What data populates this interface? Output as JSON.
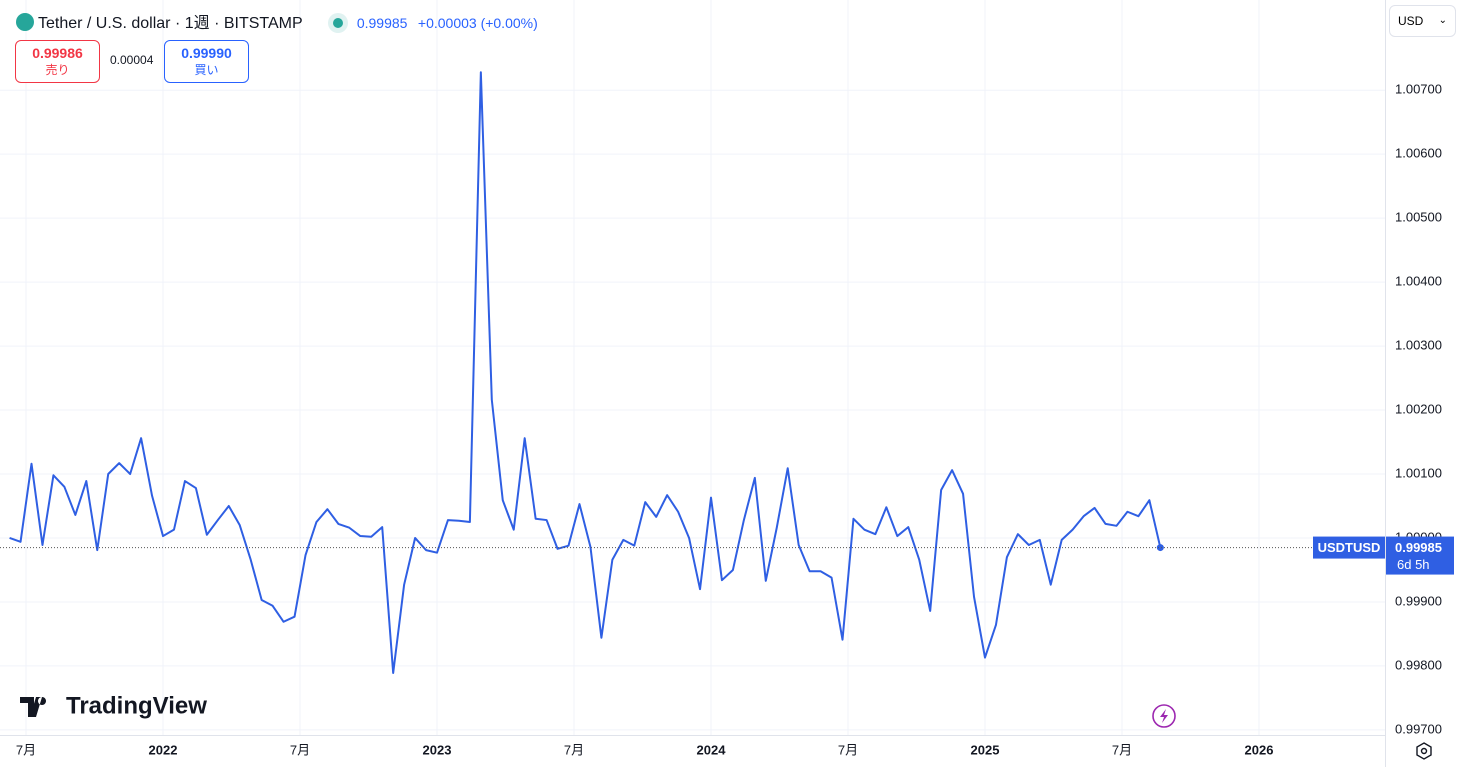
{
  "header": {
    "symbol": "Tether / U.S. dollar · 1週 · BITSTAMP",
    "last": "0.99985",
    "change": "+0.00003 (+0.00%)",
    "sell": {
      "price": "0.99986",
      "label": "売り"
    },
    "spread": "0.00004",
    "buy": {
      "price": "0.99990",
      "label": "買い"
    },
    "currency": "USD"
  },
  "logo": "TradingView",
  "chart_data": {
    "type": "line",
    "x": [
      2021.44,
      2021.48,
      2021.52,
      2021.56,
      2021.6,
      2021.64,
      2021.68,
      2021.72,
      2021.76,
      2021.8,
      2021.84,
      2021.88,
      2021.92,
      2021.96,
      2022.0,
      2022.04,
      2022.08,
      2022.12,
      2022.16,
      2022.2,
      2022.24,
      2022.28,
      2022.32,
      2022.36,
      2022.4,
      2022.44,
      2022.48,
      2022.52,
      2022.56,
      2022.6,
      2022.64,
      2022.68,
      2022.72,
      2022.76,
      2022.8,
      2022.84,
      2022.88,
      2022.92,
      2022.96,
      2023.0,
      2023.04,
      2023.08,
      2023.12,
      2023.16,
      2023.2,
      2023.24,
      2023.28,
      2023.32,
      2023.36,
      2023.4,
      2023.44,
      2023.48,
      2023.52,
      2023.56,
      2023.6,
      2023.64,
      2023.68,
      2023.72,
      2023.76,
      2023.8,
      2023.84,
      2023.88,
      2023.92,
      2023.96,
      2024.0,
      2024.04,
      2024.08,
      2024.12,
      2024.16,
      2024.2,
      2024.24,
      2024.28,
      2024.32,
      2024.36,
      2024.4,
      2024.44,
      2024.48,
      2024.52,
      2024.56,
      2024.6,
      2024.64,
      2024.68,
      2024.72,
      2024.76,
      2024.8,
      2024.84,
      2024.88,
      2024.92,
      2024.96,
      2025.0,
      2025.04,
      2025.08,
      2025.12,
      2025.16,
      2025.2,
      2025.24,
      2025.28,
      2025.32,
      2025.36,
      2025.4,
      2025.44,
      2025.48,
      2025.52,
      2025.56,
      2025.6,
      2025.64
    ],
    "series": [
      {
        "name": "USDTUSD",
        "color": "#2f5fe3",
        "values": [
          1.0,
          0.99994,
          1.00116,
          0.99989,
          1.00098,
          1.0008,
          1.00036,
          1.00089,
          0.99981,
          1.001,
          1.00117,
          1.001,
          1.00156,
          1.00066,
          1.00003,
          1.00013,
          1.00089,
          1.00078,
          1.00005,
          1.00028,
          1.0005,
          1.0002,
          0.99966,
          0.99903,
          0.99894,
          0.99869,
          0.99877,
          0.99973,
          1.00025,
          1.00045,
          1.00022,
          1.00016,
          1.00003,
          1.00002,
          1.00017,
          0.99789,
          0.99927,
          1.0,
          0.99981,
          0.99977,
          1.00028,
          1.00027,
          1.00025,
          1.00728,
          1.00216,
          1.00059,
          1.00013,
          1.00156,
          1.0003,
          1.00028,
          0.99983,
          0.99988,
          1.00053,
          0.99986,
          0.99844,
          0.99966,
          0.99997,
          0.99988,
          1.00056,
          1.00033,
          1.00067,
          1.00041,
          1.0,
          0.9992,
          1.00063,
          0.99934,
          0.9995,
          1.00028,
          1.00094,
          0.99933,
          1.00016,
          1.00109,
          0.99989,
          0.99948,
          0.99948,
          0.99938,
          0.99841,
          1.0003,
          1.00013,
          1.00006,
          1.00048,
          1.00003,
          1.00017,
          0.99966,
          0.99886,
          1.00075,
          1.00106,
          1.00069,
          0.99908,
          0.99813,
          0.99864,
          0.9997,
          1.00006,
          0.99989,
          0.99997,
          0.99927,
          0.99997,
          1.00013,
          1.00034,
          1.00047,
          1.00022,
          1.00019,
          1.00041,
          1.00034,
          1.00059,
          0.99985
        ]
      }
    ],
    "xlim": [
      2021.405,
      2026.46
    ],
    "xticks": [
      {
        "value": 2021.5,
        "label": "7月"
      },
      2022,
      {
        "value": 2022.5,
        "label": "7月"
      },
      2023,
      {
        "value": 2023.5,
        "label": "7月"
      },
      2024,
      {
        "value": 2024.5,
        "label": "7月"
      },
      2025,
      {
        "value": 2025.5,
        "label": "7月"
      },
      2026
    ],
    "ylim": [
      0.99692,
      1.00841
    ],
    "yticks": [
      {
        "value": 0.997,
        "label": "0.99700"
      },
      {
        "value": 0.998,
        "label": "0.99800"
      },
      {
        "value": 0.999,
        "label": "0.99900"
      },
      {
        "value": 1.0,
        "label": "1.00000"
      },
      {
        "value": 1.001,
        "label": "1.00100"
      },
      {
        "value": 1.002,
        "label": "1.00200"
      },
      {
        "value": 1.003,
        "label": "1.00300"
      },
      {
        "value": 1.004,
        "label": "1.00400"
      },
      {
        "value": 1.005,
        "label": "1.00500"
      },
      {
        "value": 1.006,
        "label": "1.00600"
      },
      {
        "value": 1.007,
        "label": "1.00700"
      }
    ],
    "grid": true,
    "price_line": {
      "symbol": "USDTUSD",
      "value": 0.99985,
      "countdown": "6d 5h"
    }
  }
}
